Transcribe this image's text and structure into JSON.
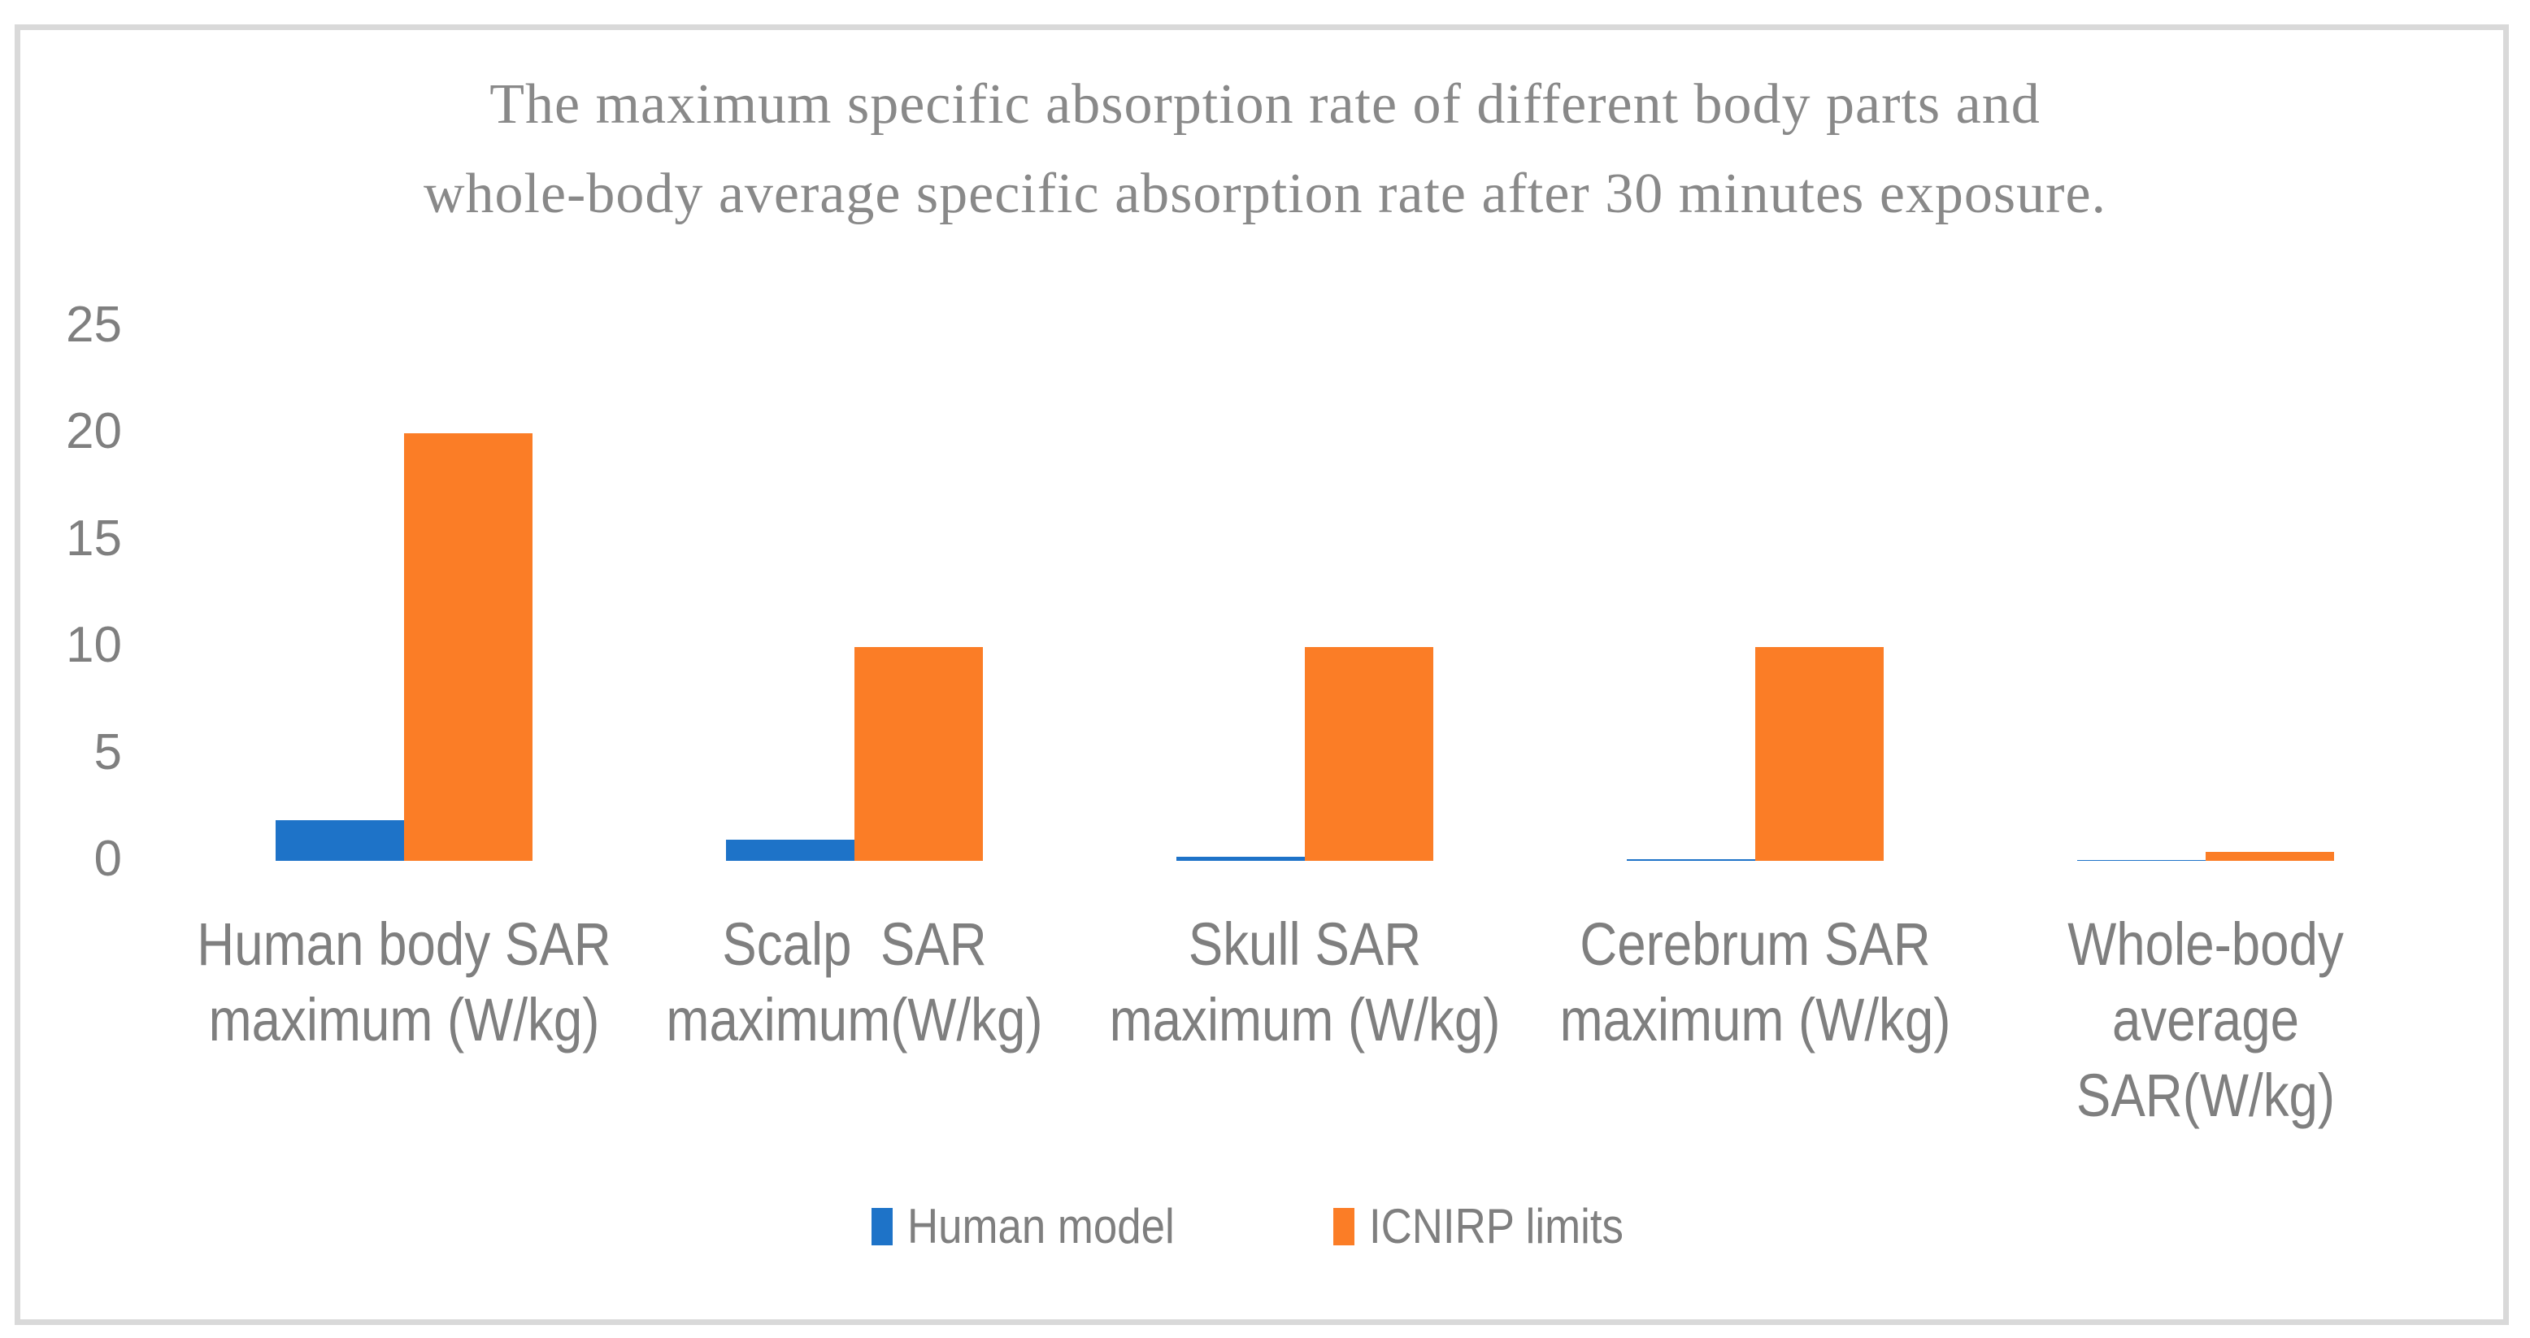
{
  "title": {
    "line1": "The maximum specific absorption rate of different body parts and",
    "line2": "whole-body average specific absorption rate after 30 minutes exposure."
  },
  "colors": {
    "human_model_blue": "#1E73C8",
    "icnirp_orange": "#FB7D26",
    "text_gray": "#7F7F7F",
    "title_gray": "#898989",
    "frame_gray": "#D9D9D9"
  },
  "legend": {
    "items": [
      {
        "label": "Human model",
        "color": "#1E73C8"
      },
      {
        "label": "ICNIRP limits",
        "color": "#FB7D26"
      }
    ]
  },
  "chart_data": {
    "type": "bar",
    "title": "The maximum specific absorption rate of different body parts and whole-body average specific absorption rate after 30 minutes exposure.",
    "categories": [
      "Human body SAR maximum (W/kg)",
      "Scalp  SAR maximum(W/kg)",
      "Skull SAR maximum (W/kg)",
      "Cerebrum SAR maximum (W/kg)",
      "Whole-body average SAR(W/kg)"
    ],
    "categories_lines": [
      [
        "Human body SAR",
        "maximum (W/kg)"
      ],
      [
        "Scalp  SAR",
        "maximum(W/kg)"
      ],
      [
        "Skull SAR",
        "maximum (W/kg)"
      ],
      [
        "Cerebrum SAR",
        "maximum (W/kg)"
      ],
      [
        "Whole-body",
        "average",
        "SAR(W/kg)"
      ]
    ],
    "series": [
      {
        "name": "Human model",
        "color": "#1E73C8",
        "values": [
          1.9,
          1.0,
          0.2,
          0.07,
          0.05
        ]
      },
      {
        "name": "ICNIRP limits",
        "color": "#FB7D26",
        "values": [
          20,
          10,
          10,
          10,
          0.4
        ]
      }
    ],
    "xlabel": "",
    "ylabel": "",
    "ylim": [
      0,
      25
    ],
    "yticks": [
      0,
      5,
      10,
      15,
      20,
      25
    ],
    "grid": false,
    "legend_position": "bottom"
  }
}
